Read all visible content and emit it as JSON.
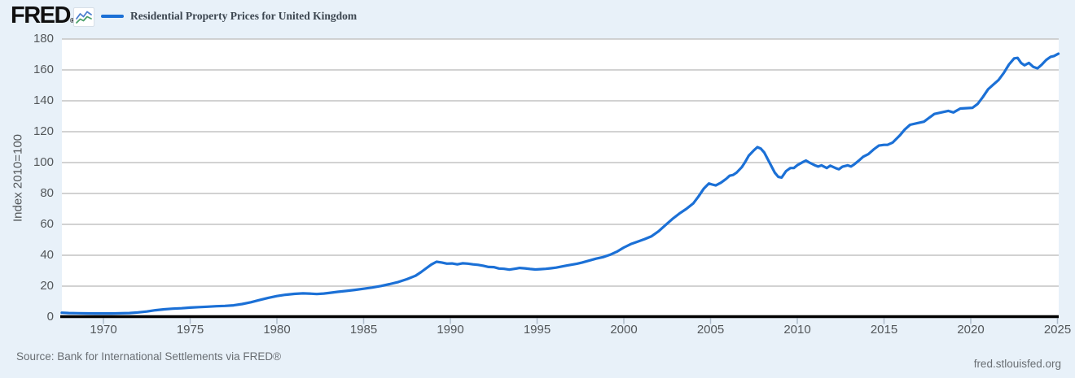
{
  "header": {
    "logo_text": "FRED",
    "logo_registered": "®",
    "legend_label": "Residential Property Prices for United Kingdom"
  },
  "footer": {
    "source": "Source: Bank for International Settlements via FRED®",
    "site": "fred.stlouisfed.org"
  },
  "colors": {
    "line": "#1b70d6",
    "background": "#e8f1f9",
    "plot_background": "#ffffff",
    "gridline": "#cbcbcb",
    "axis_line": "#000000",
    "tick": "#aebccb",
    "icon_blue": "#4d7fd0",
    "icon_green": "#4aa06a"
  },
  "chart_data": {
    "type": "line",
    "title": "Residential Property Prices for United Kingdom",
    "xlabel": "",
    "ylabel": "Index 2010=100",
    "ylim": [
      0,
      180
    ],
    "y_ticks": [
      0,
      20,
      40,
      60,
      80,
      100,
      120,
      140,
      160,
      180
    ],
    "x_ticks": [
      1970,
      1975,
      1980,
      1985,
      1990,
      1995,
      2000,
      2005,
      2010,
      2015,
      2020,
      2025
    ],
    "x_range": [
      1967.6,
      2025.1
    ],
    "grid": true,
    "legend_position": "top-left",
    "series": [
      {
        "name": "Residential Property Prices for United Kingdom",
        "color": "#1b70d6",
        "points": [
          [
            1967.6,
            2.8
          ],
          [
            1968.0,
            2.6
          ],
          [
            1968.5,
            2.45
          ],
          [
            1969.0,
            2.35
          ],
          [
            1969.5,
            2.3
          ],
          [
            1970.0,
            2.3
          ],
          [
            1970.5,
            2.3
          ],
          [
            1971.0,
            2.4
          ],
          [
            1971.5,
            2.6
          ],
          [
            1972.0,
            3.0
          ],
          [
            1972.5,
            3.6
          ],
          [
            1973.0,
            4.4
          ],
          [
            1973.5,
            5.0
          ],
          [
            1974.0,
            5.4
          ],
          [
            1974.5,
            5.7
          ],
          [
            1975.0,
            6.1
          ],
          [
            1975.5,
            6.4
          ],
          [
            1976.0,
            6.7
          ],
          [
            1976.5,
            7.0
          ],
          [
            1977.0,
            7.2
          ],
          [
            1977.5,
            7.6
          ],
          [
            1978.0,
            8.4
          ],
          [
            1978.5,
            9.6
          ],
          [
            1979.0,
            11.0
          ],
          [
            1979.5,
            12.4
          ],
          [
            1980.0,
            13.6
          ],
          [
            1980.5,
            14.4
          ],
          [
            1981.0,
            15.0
          ],
          [
            1981.5,
            15.3
          ],
          [
            1982.0,
            15.1
          ],
          [
            1982.3,
            14.9
          ],
          [
            1982.7,
            15.2
          ],
          [
            1983.0,
            15.6
          ],
          [
            1983.5,
            16.3
          ],
          [
            1984.0,
            16.9
          ],
          [
            1984.5,
            17.6
          ],
          [
            1985.0,
            18.3
          ],
          [
            1985.5,
            19.1
          ],
          [
            1986.0,
            20.1
          ],
          [
            1986.5,
            21.3
          ],
          [
            1987.0,
            22.7
          ],
          [
            1987.5,
            24.5
          ],
          [
            1988.0,
            26.8
          ],
          [
            1988.3,
            29.0
          ],
          [
            1988.6,
            31.5
          ],
          [
            1988.9,
            34.0
          ],
          [
            1989.2,
            35.8
          ],
          [
            1989.5,
            35.3
          ],
          [
            1989.8,
            34.6
          ],
          [
            1990.1,
            34.7
          ],
          [
            1990.4,
            34.1
          ],
          [
            1990.7,
            34.8
          ],
          [
            1991.0,
            34.6
          ],
          [
            1991.3,
            34.1
          ],
          [
            1991.6,
            33.8
          ],
          [
            1991.9,
            33.2
          ],
          [
            1992.2,
            32.4
          ],
          [
            1992.5,
            32.3
          ],
          [
            1992.8,
            31.4
          ],
          [
            1993.1,
            31.2
          ],
          [
            1993.4,
            30.7
          ],
          [
            1993.7,
            31.2
          ],
          [
            1994.0,
            31.8
          ],
          [
            1994.3,
            31.5
          ],
          [
            1994.6,
            31.1
          ],
          [
            1994.9,
            30.8
          ],
          [
            1995.2,
            31.0
          ],
          [
            1995.5,
            31.2
          ],
          [
            1995.8,
            31.6
          ],
          [
            1996.1,
            32.0
          ],
          [
            1996.4,
            32.7
          ],
          [
            1996.7,
            33.3
          ],
          [
            1997.0,
            33.9
          ],
          [
            1997.3,
            34.5
          ],
          [
            1997.6,
            35.3
          ],
          [
            1998.0,
            36.5
          ],
          [
            1998.4,
            37.8
          ],
          [
            1998.8,
            38.8
          ],
          [
            1999.2,
            40.3
          ],
          [
            1999.6,
            42.3
          ],
          [
            2000.0,
            45.0
          ],
          [
            2000.4,
            47.2
          ],
          [
            2000.8,
            48.8
          ],
          [
            2001.2,
            50.5
          ],
          [
            2001.6,
            52.3
          ],
          [
            2002.0,
            55.5
          ],
          [
            2002.4,
            59.5
          ],
          [
            2002.8,
            63.5
          ],
          [
            2003.2,
            67.0
          ],
          [
            2003.6,
            70.0
          ],
          [
            2004.0,
            73.5
          ],
          [
            2004.3,
            78.0
          ],
          [
            2004.6,
            83.0
          ],
          [
            2004.9,
            86.5
          ],
          [
            2005.1,
            85.8
          ],
          [
            2005.3,
            85.2
          ],
          [
            2005.6,
            87.0
          ],
          [
            2005.9,
            89.5
          ],
          [
            2006.1,
            91.5
          ],
          [
            2006.3,
            92.0
          ],
          [
            2006.5,
            93.5
          ],
          [
            2006.8,
            97.0
          ],
          [
            2007.0,
            100.5
          ],
          [
            2007.2,
            104.5
          ],
          [
            2007.5,
            108.0
          ],
          [
            2007.7,
            110.0
          ],
          [
            2007.9,
            109.0
          ],
          [
            2008.1,
            106.5
          ],
          [
            2008.4,
            100.0
          ],
          [
            2008.7,
            93.5
          ],
          [
            2008.9,
            90.8
          ],
          [
            2009.1,
            90.3
          ],
          [
            2009.35,
            94.5
          ],
          [
            2009.6,
            96.5
          ],
          [
            2009.8,
            96.5
          ],
          [
            2010.0,
            98.3
          ],
          [
            2010.3,
            100.2
          ],
          [
            2010.5,
            101.3
          ],
          [
            2010.7,
            100.0
          ],
          [
            2011.0,
            98.3
          ],
          [
            2011.2,
            97.4
          ],
          [
            2011.4,
            98.2
          ],
          [
            2011.7,
            96.5
          ],
          [
            2011.9,
            98.0
          ],
          [
            2012.2,
            96.5
          ],
          [
            2012.4,
            95.7
          ],
          [
            2012.6,
            97.3
          ],
          [
            2012.9,
            98.2
          ],
          [
            2013.1,
            97.5
          ],
          [
            2013.3,
            99.0
          ],
          [
            2013.6,
            101.8
          ],
          [
            2013.8,
            103.8
          ],
          [
            2014.1,
            105.5
          ],
          [
            2014.4,
            108.5
          ],
          [
            2014.7,
            111.0
          ],
          [
            2015.0,
            111.5
          ],
          [
            2015.2,
            111.5
          ],
          [
            2015.5,
            113.0
          ],
          [
            2015.9,
            117.5
          ],
          [
            2016.2,
            121.5
          ],
          [
            2016.5,
            124.5
          ],
          [
            2016.9,
            125.5
          ],
          [
            2017.3,
            126.5
          ],
          [
            2017.6,
            129.0
          ],
          [
            2017.9,
            131.5
          ],
          [
            2018.3,
            132.5
          ],
          [
            2018.7,
            133.5
          ],
          [
            2019.0,
            132.5
          ],
          [
            2019.4,
            135.0
          ],
          [
            2019.7,
            135.2
          ],
          [
            2020.1,
            135.5
          ],
          [
            2020.4,
            138.0
          ],
          [
            2020.7,
            142.5
          ],
          [
            2021.0,
            147.5
          ],
          [
            2021.3,
            150.5
          ],
          [
            2021.6,
            153.5
          ],
          [
            2021.9,
            158.0
          ],
          [
            2022.2,
            163.5
          ],
          [
            2022.5,
            167.5
          ],
          [
            2022.7,
            167.8
          ],
          [
            2022.9,
            164.5
          ],
          [
            2023.1,
            163.0
          ],
          [
            2023.35,
            164.5
          ],
          [
            2023.6,
            162.0
          ],
          [
            2023.85,
            161.0
          ],
          [
            2024.1,
            163.5
          ],
          [
            2024.35,
            166.5
          ],
          [
            2024.6,
            168.5
          ],
          [
            2024.8,
            169.0
          ],
          [
            2025.05,
            170.5
          ]
        ]
      }
    ]
  }
}
